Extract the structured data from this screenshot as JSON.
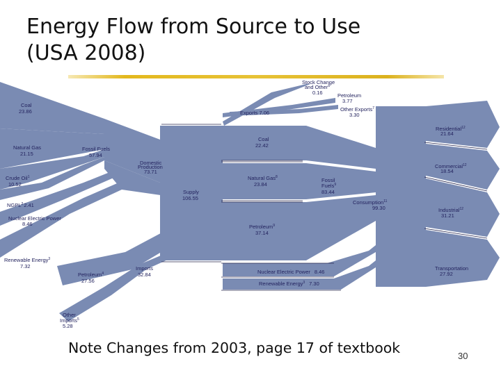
{
  "slide": {
    "title_line1": "Energy Flow from Source to Use",
    "title_line2": "(USA 2008)",
    "caption": "Note Changes from 2003, page 17 of textbook",
    "page_number": "30"
  },
  "diagram": {
    "colors": {
      "flow": "#7a8bb3",
      "background": "#ffffff",
      "label": "#23235e",
      "accent": "#e3b81d"
    },
    "sources": {
      "coal": {
        "label": "Coal",
        "value": "23.86"
      },
      "natural_gas": {
        "label": "Natural Gas",
        "value": "21.15"
      },
      "crude_oil": {
        "label": "Crude Oil",
        "sup": "1",
        "value": "10.52"
      },
      "ngpl": {
        "label": "NGPL",
        "sup": "2",
        "value": "2.41"
      },
      "nuclear": {
        "label": "Nuclear Electric Power",
        "value": "8.46"
      },
      "renewable": {
        "label": "Renewable Energy",
        "sup": "3",
        "value": "7.32"
      },
      "petroleum_imports": {
        "label": "Petroleum",
        "sup": "4",
        "value": "27.56"
      },
      "other_imports": {
        "label": "Other",
        "label2": "Imports",
        "sup": "5",
        "value": "5.28"
      }
    },
    "middle": {
      "fossil_fuels": {
        "label": "Fossil Fuels",
        "value": "57.94"
      },
      "domestic_production": {
        "label": "Domestic",
        "label2": "Production",
        "value": "73.71"
      },
      "supply": {
        "label": "Supply",
        "value": "106.55"
      },
      "imports": {
        "label": "Imports",
        "value": "32.84"
      }
    },
    "outflows": {
      "stock_change": {
        "label": "Stock Change",
        "label2": "and Other",
        "sup": "6",
        "value": "0.16"
      },
      "petroleum_export": {
        "label": "Petroleum",
        "value": "3.77"
      },
      "other_exports": {
        "label": "Other Exports",
        "sup": "7",
        "value": "3.30"
      },
      "exports": {
        "label": "Exports",
        "value": "7.06"
      }
    },
    "consumption_side": {
      "coal": {
        "label": "Coal",
        "value": "22.42"
      },
      "natural_gas": {
        "label": "Natural Gas",
        "sup": "8",
        "value": "23.84"
      },
      "fossil_fuels": {
        "label": "Fossil",
        "label2": "Fuels",
        "sup": "9",
        "value": "83.44"
      },
      "petroleum": {
        "label": "Petroleum",
        "sup": "9",
        "value": "37.14"
      },
      "consumption": {
        "label": "Consumption",
        "sup": "11",
        "value": "99.30"
      },
      "nuclear": {
        "label": "Nuclear Electric Power",
        "value": "8.46"
      },
      "renewable": {
        "label": "Renewable Energy",
        "sup": "3",
        "value": "7.30"
      }
    },
    "sectors": {
      "residential": {
        "label": "Residential",
        "sup": "12",
        "value": "21.64"
      },
      "commercial": {
        "label": "Commercial",
        "sup": "12",
        "value": "18.54"
      },
      "industrial": {
        "label": "Industrial",
        "sup": "12",
        "value": "31.21"
      },
      "transportation": {
        "label": "Transportation",
        "value": "27.92"
      }
    }
  }
}
